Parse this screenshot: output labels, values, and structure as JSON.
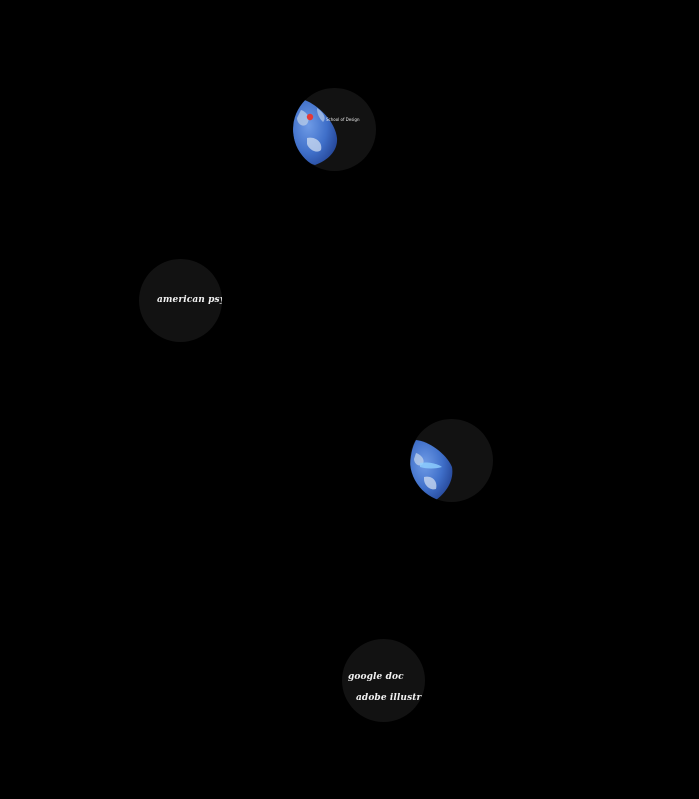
{
  "orbs": {
    "top": {
      "kind": "earth-map",
      "place_label": "School of Design",
      "marker_color": "#e53935"
    },
    "left": {
      "kind": "text",
      "label": "american psycholo"
    },
    "right": {
      "kind": "earth-map"
    },
    "bottom": {
      "kind": "text",
      "labels": [
        "google doc",
        "adobe illustrator"
      ]
    }
  },
  "colors": {
    "background": "#000000",
    "orb_fill": "#121212",
    "ocean": "#3f6fc9",
    "text": "#f2f2f2"
  }
}
